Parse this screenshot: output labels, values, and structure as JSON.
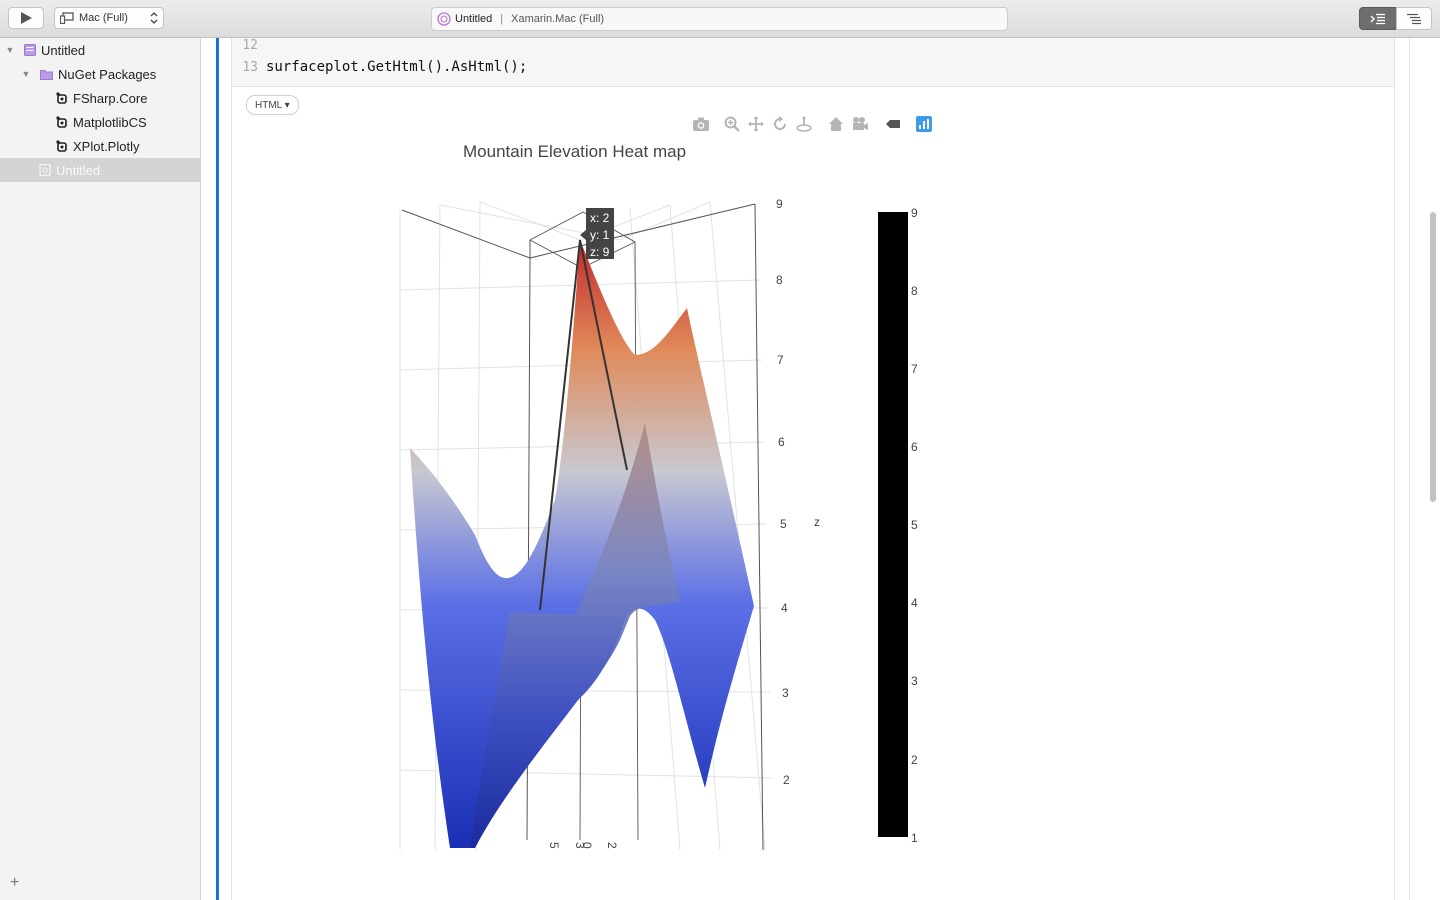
{
  "toolbar": {
    "target": "Mac (Full)",
    "document_title": "Untitled",
    "document_subtitle": "Xamarin.Mac (Full)",
    "title_separator": "|"
  },
  "sidebar": {
    "root": "Untitled",
    "packages_folder": "NuGet Packages",
    "packages": [
      "FSharp.Core",
      "MatplotlibCS",
      "XPlot.Plotly"
    ],
    "selected_item": "Untitled",
    "add_label": "+"
  },
  "editor": {
    "lines": [
      {
        "number": "12",
        "text": ""
      },
      {
        "number": "13",
        "text": "surfaceplot.GetHtml().AsHtml();"
      }
    ],
    "output_format": "HTML ▾"
  },
  "chart_data": {
    "type": "surface",
    "title": "Mountain Elevation Heat map",
    "z_axis_label": "z",
    "z_ticks": [
      "2",
      "3",
      "4",
      "5",
      "6",
      "7",
      "8",
      "9"
    ],
    "colorbar_ticks": [
      "1",
      "2",
      "3",
      "4",
      "5",
      "6",
      "7",
      "8",
      "9"
    ],
    "colorscale": [
      "#1a2fb5",
      "#5b6fe6",
      "#c8c8d0",
      "#e08a5a",
      "#c0292d"
    ],
    "floor_tick_labels": [
      "5",
      "3",
      "0",
      "2"
    ],
    "hover": {
      "x": "x: 2",
      "y": "y: 1",
      "z": "z: 9"
    }
  }
}
